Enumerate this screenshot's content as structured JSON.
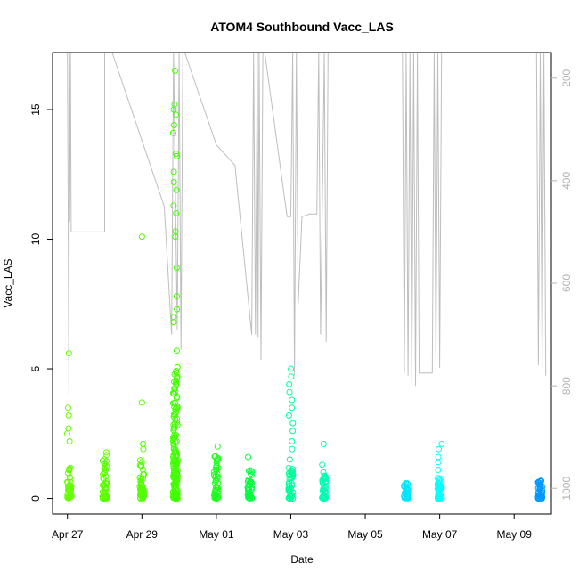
{
  "chart_data": {
    "type": "scatter",
    "title": "ATOM4 Southbound Vacc_LAS",
    "xlabel": "Date",
    "ylabel": "Vacc_LAS",
    "x_ticks": [
      "Apr 27",
      "Apr 29",
      "May 01",
      "May 03",
      "May 05",
      "May 07",
      "May 09"
    ],
    "x_tick_days": [
      0,
      2,
      4,
      6,
      8,
      10,
      12
    ],
    "xlim_days": [
      -0.4,
      13.0
    ],
    "y_ticks": [
      "0",
      "5",
      "10",
      "15"
    ],
    "y_tick_values": [
      0,
      5,
      10,
      15
    ],
    "ylim": [
      -0.6,
      17.2
    ],
    "y2_ticks": [
      "200",
      "400",
      "600",
      "800",
      "1000"
    ],
    "y2_tick_values": [
      200,
      400,
      600,
      800,
      1000
    ],
    "y2lim": [
      1050,
      150
    ],
    "grid": false,
    "legend": "none",
    "colors": {
      "line_series": "#bebebe",
      "axis": "#000000",
      "right_axis": "#b3b3b3"
    },
    "series": [
      {
        "kind": "points",
        "clusters": [
          {
            "day": 0.05,
            "min": 0.0,
            "max": 1.2,
            "extra": [
              2.2,
              2.5,
              2.7,
              3.2,
              3.5,
              5.6
            ],
            "color": "#66ff00"
          },
          {
            "day": 1.0,
            "min": 0.0,
            "max": 1.8,
            "extra": [],
            "color": "#5cff00"
          },
          {
            "day": 2.0,
            "min": 0.0,
            "max": 1.5,
            "extra": [
              1.9,
              2.1,
              3.7,
              10.1
            ],
            "color": "#52ff00"
          },
          {
            "day": 2.9,
            "min": 0.0,
            "max": 5.1,
            "extra": [
              5.7,
              6.8,
              7.0,
              7.3,
              7.8,
              8.9,
              10.1,
              10.3,
              11.0,
              11.3,
              11.9,
              12.2,
              12.6,
              13.2,
              13.3,
              14.1,
              14.4,
              14.8,
              15.0,
              15.2,
              16.5
            ],
            "color": "#40ff00"
          },
          {
            "day": 4.0,
            "min": 0.0,
            "max": 1.7,
            "extra": [
              2.0
            ],
            "color": "#1fff1f"
          },
          {
            "day": 4.9,
            "min": 0.0,
            "max": 1.1,
            "extra": [
              1.6
            ],
            "color": "#00ff40"
          },
          {
            "day": 6.0,
            "min": 0.0,
            "max": 1.2,
            "extra": [
              1.5,
              1.9,
              2.2,
              2.6,
              2.9,
              3.2,
              3.5,
              3.8,
              4.1,
              4.4,
              4.7,
              5.0
            ],
            "color": "#00ff99"
          },
          {
            "day": 6.9,
            "min": 0.0,
            "max": 0.9,
            "extra": [
              1.0,
              1.3,
              2.1
            ],
            "color": "#00ffb3"
          },
          {
            "day": 9.1,
            "min": 0.0,
            "max": 0.6,
            "extra": [],
            "color": "#00e6ff"
          },
          {
            "day": 10.0,
            "min": 0.0,
            "max": 0.8,
            "extra": [
              1.1,
              1.4,
              1.6,
              1.9,
              2.1
            ],
            "color": "#00ffff"
          },
          {
            "day": 12.7,
            "min": 0.0,
            "max": 0.7,
            "extra": [],
            "color": "#0099ff"
          }
        ]
      },
      {
        "kind": "line",
        "axis": "right",
        "color": "#bebebe",
        "x": [
          0.0,
          0.02,
          0.04,
          0.05,
          0.06,
          0.08,
          0.1,
          1.0,
          1.0,
          1.2,
          2.6,
          2.8,
          2.85,
          2.95,
          3.0,
          3.05,
          3.1,
          3.15,
          4.0,
          4.5,
          4.95,
          5.0,
          5.05,
          5.1,
          5.12,
          5.15,
          5.2,
          5.25,
          5.3,
          5.9,
          6.0,
          6.05,
          6.1,
          6.15,
          6.2,
          6.3,
          6.5,
          6.6,
          6.7,
          6.75,
          6.8,
          6.9,
          6.95,
          7.0,
          9.0,
          9.05,
          9.1,
          9.15,
          9.2,
          9.25,
          9.3,
          9.35,
          9.4,
          9.45,
          9.8,
          9.85,
          9.9,
          9.95,
          10.0,
          10.05,
          12.6,
          12.65,
          12.7,
          12.75,
          12.8,
          12.85
        ],
        "y": [
          150,
          500,
          820,
          150,
          480,
          150,
          500,
          500,
          150,
          150,
          450,
          700,
          150,
          690,
          150,
          730,
          150,
          150,
          330,
          370,
          700,
          150,
          700,
          150,
          705,
          150,
          750,
          150,
          150,
          470,
          470,
          150,
          780,
          150,
          640,
          470,
          465,
          465,
          465,
          150,
          700,
          150,
          715,
          150,
          150,
          775,
          150,
          780,
          150,
          795,
          150,
          800,
          150,
          775,
          775,
          150,
          760,
          150,
          765,
          150,
          150,
          760,
          150,
          765,
          150,
          780
        ]
      }
    ]
  }
}
